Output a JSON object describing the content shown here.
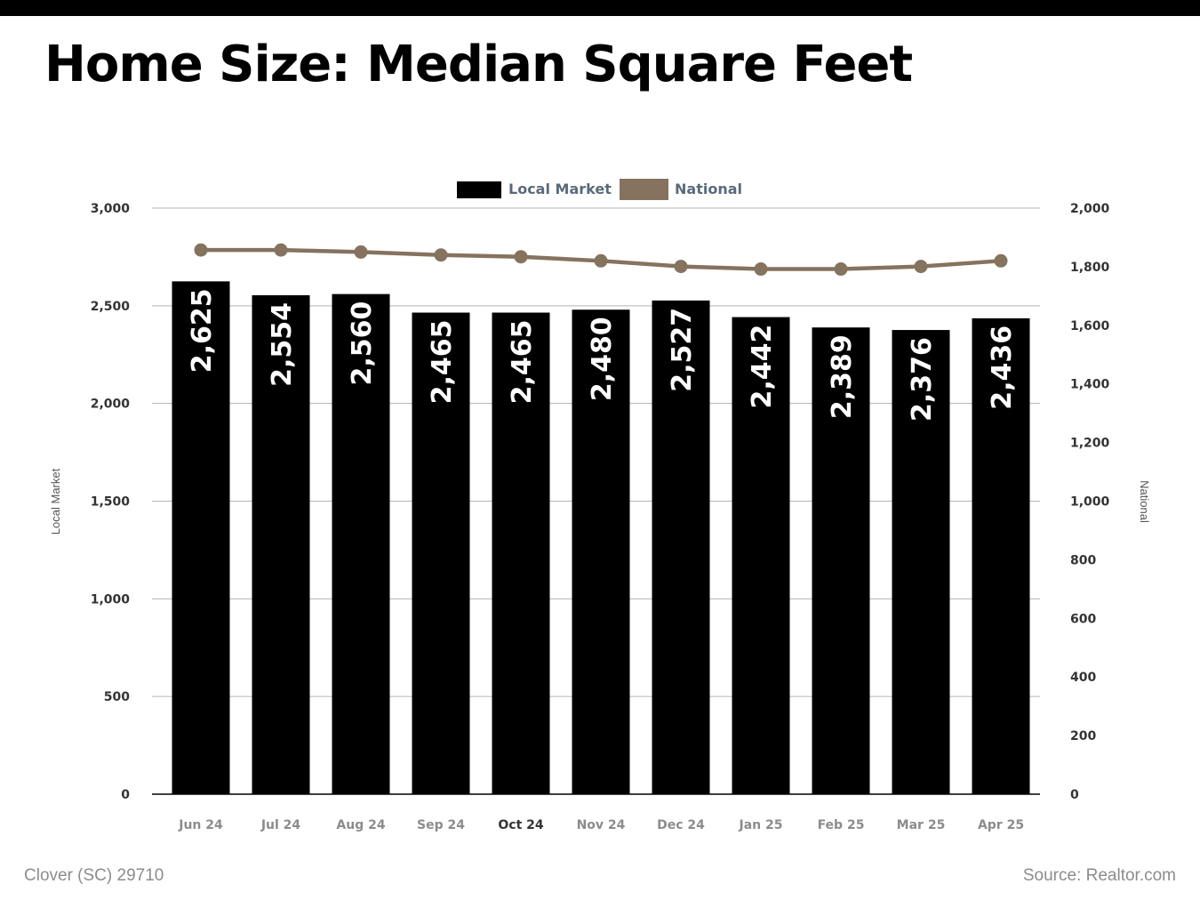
{
  "page": {
    "title": "Home Size: Median Square Feet",
    "footer_location": "Clover (SC) 29710",
    "footer_source": "Source: Realtor.com"
  },
  "colors": {
    "local_bar": "#000000",
    "national_line": "#85725f",
    "grid": "#b3b3b3",
    "axis_text": "#333333",
    "legend_text": "#5a6a7a",
    "tick_label_text": "#8c8c8c"
  },
  "chart_data": {
    "type": "bar",
    "categories": [
      "Jun 24",
      "Jul 24",
      "Aug 24",
      "Sep 24",
      "Oct 24",
      "Nov 24",
      "Dec 24",
      "Jan 25",
      "Feb 25",
      "Mar 25",
      "Apr 25"
    ],
    "series": [
      {
        "name": "Local Market",
        "type": "bar",
        "axis": "left",
        "values": [
          2625,
          2554,
          2560,
          2465,
          2465,
          2480,
          2527,
          2442,
          2389,
          2376,
          2436
        ],
        "labels": [
          "2,625",
          "2,554",
          "2,560",
          "2,465",
          "2,465",
          "2,480",
          "2,527",
          "2,442",
          "2,389",
          "2,376",
          "2,436"
        ]
      },
      {
        "name": "National",
        "type": "line",
        "axis": "right",
        "values": [
          1857,
          1857,
          1850,
          1840,
          1834,
          1820,
          1801,
          1792,
          1792,
          1801,
          1820
        ]
      }
    ],
    "left_axis": {
      "label": "Local Market",
      "range": [
        0,
        3000
      ],
      "ticks": [
        0,
        500,
        1000,
        1500,
        2000,
        2500,
        3000
      ],
      "tick_labels": [
        "0",
        "500",
        "1,000",
        "1,500",
        "2,000",
        "2,500",
        "3,000"
      ]
    },
    "right_axis": {
      "label": "National",
      "range": [
        0,
        2000
      ],
      "ticks": [
        0,
        200,
        400,
        600,
        800,
        1000,
        1200,
        1400,
        1600,
        1800,
        2000
      ],
      "tick_labels": [
        "0",
        "200",
        "400",
        "600",
        "800",
        "1,000",
        "1,200",
        "1,400",
        "1,600",
        "1,800",
        "2,000"
      ]
    },
    "legend": {
      "position": "top-center",
      "items": [
        "Local Market",
        "National"
      ]
    },
    "grid": true
  }
}
